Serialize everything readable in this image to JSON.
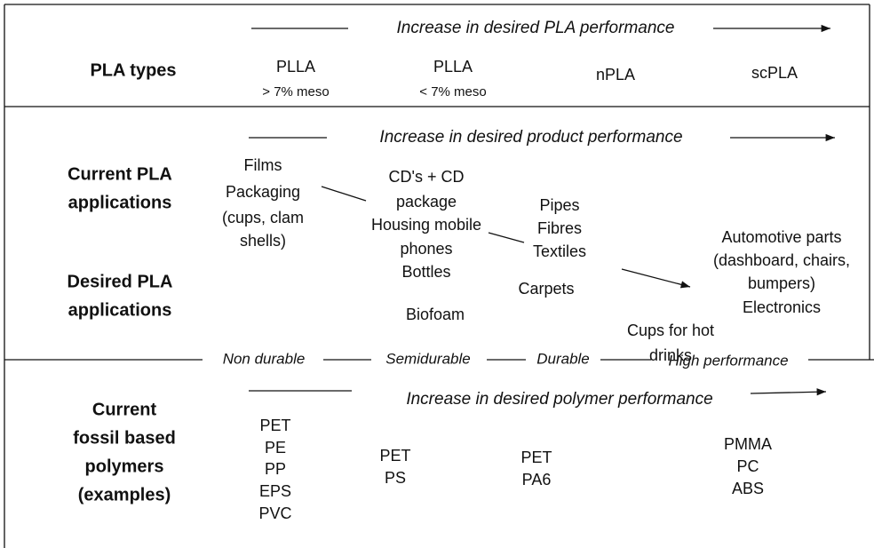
{
  "pla_types": {
    "header": "Increase in desired PLA performance",
    "label": "PLA types",
    "items": [
      {
        "name": "PLLA",
        "note": "> 7% meso"
      },
      {
        "name": "PLLA",
        "note": "< 7% meso"
      },
      {
        "name": "nPLA"
      },
      {
        "name": "scPLA"
      }
    ]
  },
  "applications": {
    "header": "Increase in desired product performance",
    "current_label": [
      "Current PLA",
      "applications"
    ],
    "desired_label": [
      "Desired  PLA",
      "applications"
    ],
    "groups": [
      [
        "Films",
        "Packaging",
        "(cups, clam",
        "shells)"
      ],
      [
        "CD's + CD",
        "package",
        "Housing mobile",
        "phones",
        "Bottles"
      ],
      [
        "Biofoam"
      ],
      [
        "Pipes",
        "Fibres",
        "Textiles"
      ],
      [
        "Carpets"
      ],
      [
        "Cups for hot",
        "drinks"
      ],
      [
        "Automotive parts",
        "(dashboard, chairs,",
        "bumpers)",
        "Electronics"
      ]
    ]
  },
  "durability": [
    "Non durable",
    "Semidurable",
    "Durable",
    "High performance"
  ],
  "polymers": {
    "header": "Increase in desired polymer performance",
    "label": [
      "Current",
      "fossil based",
      "polymers",
      "(examples)"
    ],
    "groups": [
      [
        "PET",
        "PE",
        "PP",
        "EPS",
        "PVC"
      ],
      [
        "PET",
        "PS"
      ],
      [
        "PET",
        "PA6"
      ],
      [
        "PMMA",
        "PC",
        "ABS"
      ]
    ]
  }
}
